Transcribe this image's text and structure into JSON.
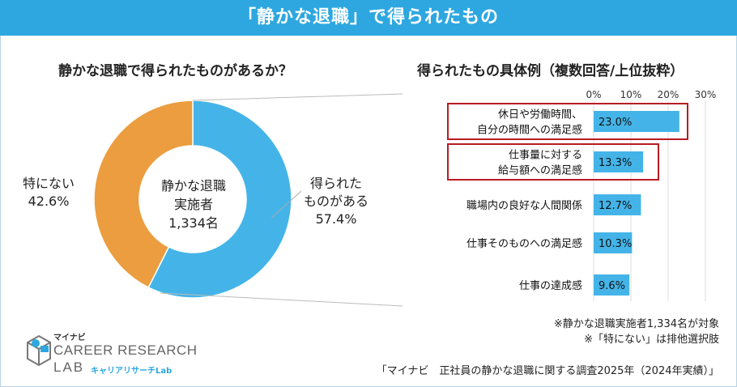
{
  "title": "「静かな退職」で得られたもの",
  "left_heading": "静かな退職で得られたものがあるか？",
  "right_heading": "得られたもの具体例（複数回答/上位抜粋）",
  "donut_center": [
    "静かな退職",
    "実施者",
    "1,334名"
  ],
  "donut_labels": {
    "yes_lines": [
      "得られた",
      "ものがある",
      "57.4%"
    ],
    "no_lines": [
      "特にない",
      "42.6%"
    ]
  },
  "notes": [
    "※静かな退職実施者1,334名が対象",
    "※「特にない」は排他選択肢"
  ],
  "source": "「マイナビ　正社員の静かな退職に関する調査2025年（2024年実績）」",
  "logo": {
    "brand": "マイナビ",
    "line1": "CAREER RESEARCH",
    "line2": "LAB",
    "sub": "キャリアリサーチLab"
  },
  "colors": {
    "accent": "#2ea7e0",
    "bar": "#44b4e8",
    "donut_yes": "#44b4e8",
    "donut_no": "#eb9d3f",
    "highlight": "#b81c22"
  },
  "chart_data": [
    {
      "type": "pie",
      "categories": [
        "得られたものがある",
        "特にない"
      ],
      "values": [
        57.4,
        42.6
      ],
      "unit": "%"
    },
    {
      "type": "bar",
      "orientation": "horizontal",
      "categories": [
        "休日や労働時間、自分の時間への満足感",
        "仕事量に対する給与額への満足感",
        "職場内の良好な人間関係",
        "仕事そのものへの満足感",
        "仕事の達成感"
      ],
      "category_lines": [
        [
          "休日や労働時間、",
          "自分の時間への満足感"
        ],
        [
          "仕事量に対する",
          "給与額への満足感"
        ],
        [
          "職場内の良好な人間関係"
        ],
        [
          "仕事そのものへの満足感"
        ],
        [
          "仕事の達成感"
        ]
      ],
      "values": [
        23.0,
        13.3,
        12.7,
        10.3,
        9.6
      ],
      "value_labels": [
        "23.0%",
        "13.3%",
        "12.7%",
        "10.3%",
        "9.6%"
      ],
      "highlighted": [
        true,
        true,
        false,
        false,
        false
      ],
      "xlim": [
        0,
        30
      ],
      "ticks": [
        0,
        10,
        20,
        30
      ],
      "tick_labels": [
        "0%",
        "10%",
        "20%",
        "30%"
      ],
      "grid": true
    }
  ]
}
